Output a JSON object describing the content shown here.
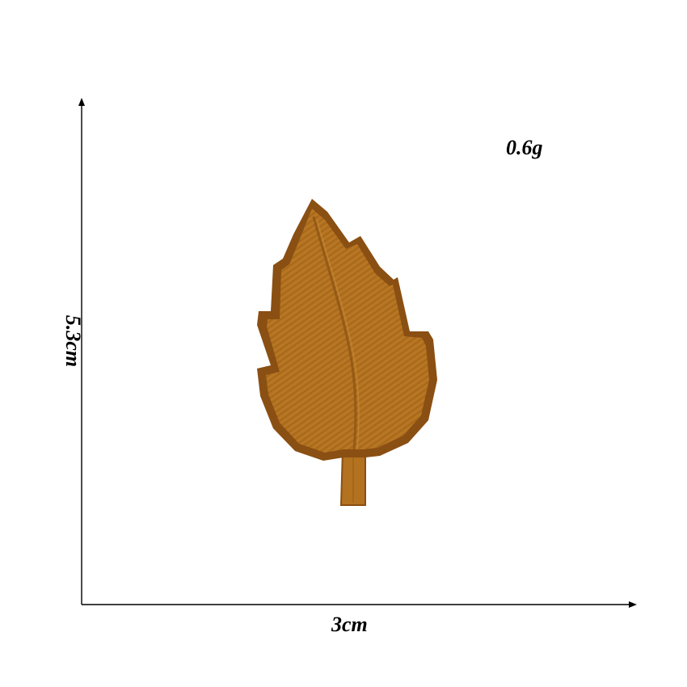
{
  "labels": {
    "weight": "0.6g",
    "width": "3cm",
    "height": "5.3cm"
  },
  "colors": {
    "axis": "#000000",
    "leaf_fill": "#b3721f",
    "leaf_border": "#8a4f12",
    "leaf_stitch": "#7a4510",
    "leaf_highlight": "#c98a33"
  },
  "icons": {
    "product": "embroidered-leaf-patch"
  }
}
